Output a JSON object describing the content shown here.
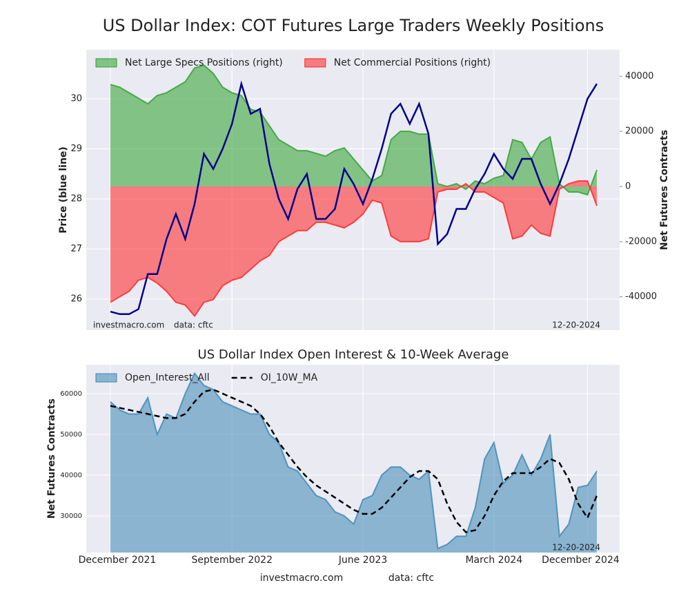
{
  "chart_data": [
    {
      "type": "area",
      "title": "US Dollar Index: COT Futures Large Traders Weekly Positions",
      "ylabel": "Price (blue line)",
      "y2label": "Net Futures Contracts",
      "ylim": [
        25.38,
        30.98
      ],
      "yticks": [
        26,
        27,
        28,
        29,
        30
      ],
      "y2lim": [
        -52100,
        49600
      ],
      "y2ticks": [
        -40000,
        -20000,
        0,
        20000,
        40000
      ],
      "grid": true,
      "legend": "upper left",
      "line": {
        "color": "#00008b",
        "values": [
          25.75,
          25.7,
          25.7,
          25.8,
          26.5,
          26.5,
          27.2,
          27.7,
          27.2,
          27.9,
          28.9,
          28.6,
          29.0,
          29.5,
          30.3,
          29.7,
          29.8,
          28.7,
          28.0,
          27.6,
          28.2,
          28.5,
          27.6,
          27.6,
          27.8,
          28.6,
          28.3,
          27.9,
          28.4,
          29.0,
          29.7,
          29.9,
          29.5,
          29.9,
          29.3,
          27.1,
          27.3,
          27.8,
          27.8,
          28.2,
          28.5,
          28.9,
          28.6,
          28.4,
          28.8,
          28.8,
          28.3,
          27.9,
          28.3,
          28.8,
          29.4,
          30.0,
          30.3
        ]
      },
      "series": [
        {
          "name": "Net Large Specs Positions (right)",
          "color": "#2ca02c",
          "axis": "y2",
          "values": [
            37000,
            36000,
            34000,
            32000,
            30000,
            33000,
            34000,
            36000,
            38000,
            43000,
            44000,
            41000,
            36000,
            34000,
            33000,
            28000,
            27000,
            22000,
            17000,
            15000,
            13000,
            13000,
            12000,
            11000,
            13000,
            14000,
            10000,
            6000,
            2000,
            4000,
            17000,
            20000,
            20000,
            19000,
            19000,
            1000,
            0,
            1000,
            -1000,
            2000,
            1000,
            3000,
            4000,
            17000,
            16000,
            10000,
            16000,
            18000,
            1000,
            -2000,
            -2000,
            -3000,
            6000
          ]
        },
        {
          "name": "Net Commercial Positions (right)",
          "color": "#ff2020",
          "axis": "y2",
          "values": [
            -42000,
            -40000,
            -38000,
            -34000,
            -33000,
            -35000,
            -38000,
            -42000,
            -43000,
            -47000,
            -42000,
            -41000,
            -36000,
            -34000,
            -33000,
            -30000,
            -27000,
            -25000,
            -20000,
            -18000,
            -16000,
            -16000,
            -13000,
            -13000,
            -14000,
            -15000,
            -13000,
            -10000,
            -5000,
            -6000,
            -18000,
            -20000,
            -20000,
            -20000,
            -19000,
            -2000,
            -1000,
            -1000,
            1000,
            -2000,
            -2000,
            -4000,
            -6000,
            -19000,
            -18000,
            -14000,
            -17000,
            -18000,
            -1000,
            1000,
            2000,
            2000,
            -7000
          ]
        }
      ],
      "annotations": [
        "investmacro.com",
        "data: cftc",
        "12-20-2024"
      ]
    },
    {
      "type": "area",
      "title": "US Dollar Index Open Interest & 10-Week Average",
      "ylabel": "Net Futures Contracts",
      "ylim": [
        21000,
        67100
      ],
      "yticks": [
        30000,
        40000,
        50000,
        60000
      ],
      "grid": true,
      "legend": "upper left",
      "categories": [
        "December 2021",
        null,
        null,
        null,
        null,
        null,
        null,
        null,
        null,
        null,
        null,
        null,
        null,
        "September 2022",
        null,
        null,
        null,
        null,
        null,
        null,
        null,
        null,
        null,
        null,
        null,
        null,
        null,
        "June 2023",
        null,
        null,
        null,
        null,
        null,
        null,
        null,
        null,
        null,
        null,
        null,
        null,
        null,
        "March 2024",
        null,
        null,
        null,
        null,
        null,
        null,
        null,
        null,
        null,
        "December 2024",
        null
      ],
      "series": [
        {
          "name": "Open_Interest_All",
          "color": "#3a86b4",
          "kind": "area",
          "values": [
            58000,
            56000,
            55000,
            55000,
            59000,
            50000,
            55000,
            54000,
            60000,
            65000,
            62000,
            61000,
            58000,
            57000,
            56000,
            55000,
            55000,
            50000,
            48000,
            42000,
            41000,
            38000,
            35000,
            34000,
            31000,
            30000,
            28000,
            34000,
            35000,
            40000,
            42000,
            42000,
            40000,
            39000,
            41000,
            22000,
            23000,
            25000,
            25000,
            32000,
            44000,
            48000,
            38000,
            40000,
            45000,
            40000,
            44000,
            50000,
            25000,
            28000,
            37000,
            37500,
            41000
          ]
        },
        {
          "name": "OI_10W_MA",
          "color": "#000000",
          "kind": "line",
          "values": [
            57000,
            56500,
            56000,
            55500,
            55000,
            54500,
            54000,
            54000,
            55000,
            58000,
            60500,
            61000,
            60000,
            59000,
            58000,
            57000,
            55000,
            52000,
            48000,
            45000,
            42000,
            39500,
            37500,
            36000,
            34500,
            33000,
            31500,
            30500,
            30500,
            32000,
            34500,
            37000,
            39500,
            41000,
            41000,
            39000,
            33000,
            28500,
            26000,
            26500,
            30000,
            35000,
            38500,
            40500,
            40500,
            40500,
            42000,
            44000,
            43000,
            39000,
            33000,
            29500,
            35000
          ]
        }
      ],
      "annotations": [
        "12-20-2024"
      ]
    }
  ],
  "footer": {
    "site": "investmacro.com",
    "source": "data: cftc"
  }
}
